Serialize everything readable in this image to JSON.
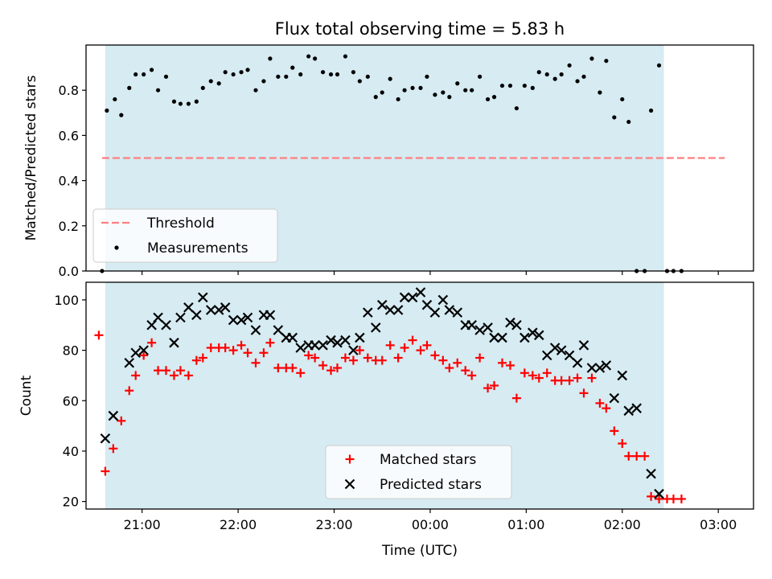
{
  "chart_data": [
    {
      "type": "scatter",
      "title": "Flux total observing time = 5.83 h",
      "xlabel": "",
      "ylabel": "Matched/Predicted stars",
      "ylim": [
        0,
        1.0
      ],
      "yticks": [
        0.0,
        0.2,
        0.4,
        0.6,
        0.8
      ],
      "ytick_labels": [
        "0.0",
        "0.2",
        "0.4",
        "0.6",
        "0.8"
      ],
      "xlim": [
        "20:25",
        "03:22"
      ],
      "xticks": [
        "21:00",
        "22:00",
        "23:00",
        "00:00",
        "01:00",
        "02:00",
        "03:00"
      ],
      "shaded_span": {
        "from": "20:37",
        "to": "02:26",
        "color": "#add8e6"
      },
      "legend": {
        "placement": "lower-left",
        "entries": [
          "Threshold",
          "Measurements"
        ]
      },
      "series": [
        {
          "name": "Threshold",
          "kind": "dashed-line",
          "color": "#ff7f7f",
          "points": [
            [
              "20:35",
              0.5
            ],
            [
              "03:04",
              0.5
            ]
          ]
        },
        {
          "name": "Measurements",
          "kind": "dots",
          "color": "#000000",
          "points": [
            [
              "20:35",
              0.0
            ],
            [
              "20:38",
              0.71
            ],
            [
              "20:43",
              0.76
            ],
            [
              "20:47",
              0.69
            ],
            [
              "20:52",
              0.81
            ],
            [
              "20:56",
              0.87
            ],
            [
              "21:01",
              0.87
            ],
            [
              "21:06",
              0.89
            ],
            [
              "21:10",
              0.8
            ],
            [
              "21:15",
              0.86
            ],
            [
              "21:20",
              0.75
            ],
            [
              "21:24",
              0.74
            ],
            [
              "21:29",
              0.74
            ],
            [
              "21:34",
              0.75
            ],
            [
              "21:38",
              0.81
            ],
            [
              "21:43",
              0.84
            ],
            [
              "21:48",
              0.83
            ],
            [
              "21:52",
              0.88
            ],
            [
              "21:57",
              0.87
            ],
            [
              "22:02",
              0.88
            ],
            [
              "22:06",
              0.89
            ],
            [
              "22:11",
              0.8
            ],
            [
              "22:16",
              0.84
            ],
            [
              "22:20",
              0.94
            ],
            [
              "22:25",
              0.86
            ],
            [
              "22:30",
              0.86
            ],
            [
              "22:34",
              0.9
            ],
            [
              "22:39",
              0.87
            ],
            [
              "22:44",
              0.95
            ],
            [
              "22:48",
              0.94
            ],
            [
              "22:53",
              0.88
            ],
            [
              "22:58",
              0.87
            ],
            [
              "23:02",
              0.87
            ],
            [
              "23:07",
              0.95
            ],
            [
              "23:12",
              0.88
            ],
            [
              "23:16",
              0.84
            ],
            [
              "23:21",
              0.86
            ],
            [
              "23:26",
              0.77
            ],
            [
              "23:30",
              0.79
            ],
            [
              "23:35",
              0.85
            ],
            [
              "23:40",
              0.76
            ],
            [
              "23:44",
              0.8
            ],
            [
              "23:49",
              0.81
            ],
            [
              "23:54",
              0.81
            ],
            [
              "23:58",
              0.86
            ],
            [
              "00:03",
              0.78
            ],
            [
              "00:08",
              0.79
            ],
            [
              "00:12",
              0.77
            ],
            [
              "00:17",
              0.83
            ],
            [
              "00:22",
              0.8
            ],
            [
              "00:26",
              0.8
            ],
            [
              "00:31",
              0.86
            ],
            [
              "00:36",
              0.76
            ],
            [
              "00:40",
              0.77
            ],
            [
              "00:45",
              0.82
            ],
            [
              "00:50",
              0.82
            ],
            [
              "00:54",
              0.72
            ],
            [
              "00:59",
              0.82
            ],
            [
              "01:04",
              0.81
            ],
            [
              "01:08",
              0.88
            ],
            [
              "01:13",
              0.87
            ],
            [
              "01:18",
              0.85
            ],
            [
              "01:22",
              0.87
            ],
            [
              "01:27",
              0.91
            ],
            [
              "01:32",
              0.84
            ],
            [
              "01:36",
              0.86
            ],
            [
              "01:41",
              0.94
            ],
            [
              "01:46",
              0.79
            ],
            [
              "01:50",
              0.93
            ],
            [
              "01:55",
              0.68
            ],
            [
              "02:00",
              0.76
            ],
            [
              "02:04",
              0.66
            ],
            [
              "02:09",
              0.0
            ],
            [
              "02:14",
              0.0
            ],
            [
              "02:18",
              0.71
            ],
            [
              "02:23",
              0.91
            ],
            [
              "02:28",
              0.0
            ],
            [
              "02:32",
              0.0
            ],
            [
              "02:37",
              0.0
            ]
          ]
        }
      ]
    },
    {
      "type": "scatter",
      "title": "",
      "xlabel": "Time (UTC)",
      "ylabel": "Count",
      "ylim": [
        17,
        107
      ],
      "yticks": [
        20,
        40,
        60,
        80,
        100
      ],
      "ytick_labels": [
        "20",
        "40",
        "60",
        "80",
        "100"
      ],
      "xlim": [
        "20:25",
        "03:22"
      ],
      "xticks": [
        "21:00",
        "22:00",
        "23:00",
        "00:00",
        "01:00",
        "02:00",
        "03:00"
      ],
      "shaded_span": {
        "from": "20:37",
        "to": "02:26",
        "color": "#add8e6"
      },
      "legend": {
        "placement": "lower-center",
        "entries": [
          "Matched stars",
          "Predicted stars"
        ]
      },
      "series": [
        {
          "name": "Matched stars",
          "kind": "plus",
          "color": "#ff0000",
          "points": [
            [
              "20:33",
              86
            ],
            [
              "20:37",
              32
            ],
            [
              "20:42",
              41
            ],
            [
              "20:47",
              52
            ],
            [
              "20:52",
              64
            ],
            [
              "20:56",
              70
            ],
            [
              "21:01",
              78
            ],
            [
              "21:06",
              83
            ],
            [
              "21:10",
              72
            ],
            [
              "21:15",
              72
            ],
            [
              "21:20",
              70
            ],
            [
              "21:24",
              72
            ],
            [
              "21:29",
              70
            ],
            [
              "21:34",
              76
            ],
            [
              "21:38",
              77
            ],
            [
              "21:43",
              81
            ],
            [
              "21:48",
              81
            ],
            [
              "21:52",
              81
            ],
            [
              "21:57",
              80
            ],
            [
              "22:02",
              82
            ],
            [
              "22:06",
              79
            ],
            [
              "22:11",
              75
            ],
            [
              "22:16",
              79
            ],
            [
              "22:20",
              83
            ],
            [
              "22:25",
              73
            ],
            [
              "22:30",
              73
            ],
            [
              "22:34",
              73
            ],
            [
              "22:39",
              71
            ],
            [
              "22:44",
              78
            ],
            [
              "22:48",
              77
            ],
            [
              "22:53",
              74
            ],
            [
              "22:58",
              72
            ],
            [
              "23:02",
              73
            ],
            [
              "23:07",
              77
            ],
            [
              "23:12",
              76
            ],
            [
              "23:16",
              80
            ],
            [
              "23:21",
              77
            ],
            [
              "23:26",
              76
            ],
            [
              "23:30",
              76
            ],
            [
              "23:35",
              82
            ],
            [
              "23:40",
              77
            ],
            [
              "23:44",
              81
            ],
            [
              "23:49",
              84
            ],
            [
              "23:54",
              80
            ],
            [
              "23:58",
              82
            ],
            [
              "00:03",
              78
            ],
            [
              "00:08",
              76
            ],
            [
              "00:12",
              73
            ],
            [
              "00:17",
              75
            ],
            [
              "00:22",
              72
            ],
            [
              "00:26",
              70
            ],
            [
              "00:31",
              77
            ],
            [
              "00:36",
              65
            ],
            [
              "00:40",
              66
            ],
            [
              "00:45",
              75
            ],
            [
              "00:50",
              74
            ],
            [
              "00:54",
              61
            ],
            [
              "00:59",
              71
            ],
            [
              "01:04",
              70
            ],
            [
              "01:08",
              69
            ],
            [
              "01:13",
              71
            ],
            [
              "01:18",
              68
            ],
            [
              "01:22",
              68
            ],
            [
              "01:27",
              68
            ],
            [
              "01:32",
              69
            ],
            [
              "01:36",
              63
            ],
            [
              "01:41",
              69
            ],
            [
              "01:46",
              59
            ],
            [
              "01:50",
              57
            ],
            [
              "01:55",
              48
            ],
            [
              "02:00",
              43
            ],
            [
              "02:04",
              38
            ],
            [
              "02:09",
              38
            ],
            [
              "02:14",
              38
            ],
            [
              "02:18",
              22
            ],
            [
              "02:23",
              21
            ],
            [
              "02:28",
              21
            ],
            [
              "02:32",
              21
            ],
            [
              "02:37",
              21
            ]
          ]
        },
        {
          "name": "Predicted stars",
          "kind": "cross",
          "color": "#000000",
          "points": [
            [
              "20:37",
              45
            ],
            [
              "20:42",
              54
            ],
            [
              "20:52",
              75
            ],
            [
              "20:56",
              79
            ],
            [
              "21:01",
              80
            ],
            [
              "21:06",
              90
            ],
            [
              "21:10",
              93
            ],
            [
              "21:15",
              90
            ],
            [
              "21:20",
              83
            ],
            [
              "21:24",
              93
            ],
            [
              "21:29",
              97
            ],
            [
              "21:34",
              94
            ],
            [
              "21:38",
              101
            ],
            [
              "21:43",
              96
            ],
            [
              "21:48",
              96
            ],
            [
              "21:52",
              97
            ],
            [
              "21:57",
              92
            ],
            [
              "22:02",
              92
            ],
            [
              "22:06",
              93
            ],
            [
              "22:11",
              88
            ],
            [
              "22:16",
              94
            ],
            [
              "22:20",
              94
            ],
            [
              "22:25",
              88
            ],
            [
              "22:30",
              85
            ],
            [
              "22:34",
              85
            ],
            [
              "22:39",
              81
            ],
            [
              "22:44",
              82
            ],
            [
              "22:48",
              82
            ],
            [
              "22:53",
              82
            ],
            [
              "22:58",
              84
            ],
            [
              "23:02",
              83
            ],
            [
              "23:07",
              84
            ],
            [
              "23:12",
              80
            ],
            [
              "23:16",
              85
            ],
            [
              "23:21",
              95
            ],
            [
              "23:26",
              89
            ],
            [
              "23:30",
              98
            ],
            [
              "23:35",
              96
            ],
            [
              "23:40",
              96
            ],
            [
              "23:44",
              101
            ],
            [
              "23:49",
              101
            ],
            [
              "23:54",
              103
            ],
            [
              "23:58",
              98
            ],
            [
              "00:03",
              95
            ],
            [
              "00:08",
              100
            ],
            [
              "00:12",
              96
            ],
            [
              "00:17",
              95
            ],
            [
              "00:22",
              90
            ],
            [
              "00:26",
              90
            ],
            [
              "00:31",
              88
            ],
            [
              "00:36",
              89
            ],
            [
              "00:40",
              85
            ],
            [
              "00:45",
              85
            ],
            [
              "00:50",
              91
            ],
            [
              "00:54",
              90
            ],
            [
              "00:59",
              85
            ],
            [
              "01:04",
              87
            ],
            [
              "01:08",
              86
            ],
            [
              "01:13",
              78
            ],
            [
              "01:18",
              81
            ],
            [
              "01:22",
              80
            ],
            [
              "01:27",
              78
            ],
            [
              "01:32",
              75
            ],
            [
              "01:36",
              82
            ],
            [
              "01:41",
              73
            ],
            [
              "01:46",
              73
            ],
            [
              "01:50",
              74
            ],
            [
              "01:55",
              61
            ],
            [
              "02:00",
              70
            ],
            [
              "02:04",
              56
            ],
            [
              "02:09",
              57
            ],
            [
              "02:18",
              31
            ],
            [
              "02:23",
              23
            ]
          ]
        }
      ]
    }
  ]
}
